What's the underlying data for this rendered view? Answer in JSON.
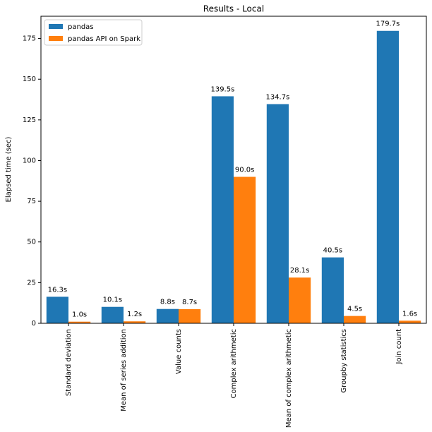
{
  "chart_data": {
    "type": "bar",
    "title": "Results - Local",
    "y_label": "Elapsed time (sec)",
    "categories": [
      "Standard deviation",
      "Mean of series addition",
      "Value counts",
      "Complex arithmetic",
      "Mean of complex arithmetic",
      "Groupby statistics",
      "Join count"
    ],
    "series": [
      {
        "name": "pandas",
        "color": "#1f77b4",
        "values": [
          16.3,
          10.1,
          8.8,
          139.5,
          134.7,
          40.5,
          179.7
        ],
        "value_labels": [
          "16.3s",
          "10.1s",
          "8.8s",
          "139.5s",
          "134.7s",
          "40.5s",
          "179.7s"
        ]
      },
      {
        "name": "pandas API on Spark",
        "color": "#ff7f0e",
        "values": [
          1.0,
          1.2,
          8.7,
          90.0,
          28.1,
          4.5,
          1.6
        ],
        "value_labels": [
          "1.0s",
          "1.2s",
          "8.7s",
          "90.0s",
          "28.1s",
          "4.5s",
          "1.6s"
        ]
      }
    ],
    "ylim": [
      0,
      188.7
    ],
    "yticks": [
      0,
      25,
      50,
      75,
      100,
      125,
      150,
      175
    ],
    "legend": "upper left"
  }
}
